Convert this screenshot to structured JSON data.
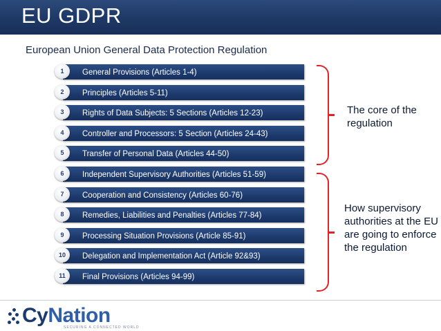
{
  "header": {
    "title": "EU GDPR"
  },
  "subtitle": "European Union General Data Protection Regulation",
  "articles": [
    {
      "num": "1",
      "label": "General Provisions (Articles 1-4)"
    },
    {
      "num": "2",
      "label": "Principles (Articles 5-11)"
    },
    {
      "num": "3",
      "label": "Rights of Data Subjects: 5 Sections (Articles 12-23)"
    },
    {
      "num": "4",
      "label": "Controller and Processors: 5 Section (Articles 24-43)"
    },
    {
      "num": "5",
      "label": "Transfer of Personal Data (Articles 44-50)"
    },
    {
      "num": "6",
      "label": "Independent Supervisory Authorities (Articles 51-59)"
    },
    {
      "num": "7",
      "label": "Cooperation and Consistency (Articles 60-76)"
    },
    {
      "num": "8",
      "label": "Remedies, Liabilities and Penalties (Articles 77-84)"
    },
    {
      "num": "9",
      "label": "Processing Situation Provisions (Article 85-91)"
    },
    {
      "num": "10",
      "label": "Delegation and Implementation Act (Article 92&93)"
    },
    {
      "num": "11",
      "label": "Final Provisions (Articles 94-99)"
    }
  ],
  "notes": {
    "core": "The core of the regulation",
    "enforce": "How supervisory authorities at the EU are going to enforce the regulation"
  },
  "logo": {
    "word_main": "Cy",
    "word_accent": "Nation",
    "tagline": "SECURING A CONNECTED WORLD"
  },
  "colors": {
    "title_bar": "#1e3866",
    "article_bar": "#1d3a6d",
    "bracket": "#e0222a",
    "text_dark": "#0d1a33"
  }
}
